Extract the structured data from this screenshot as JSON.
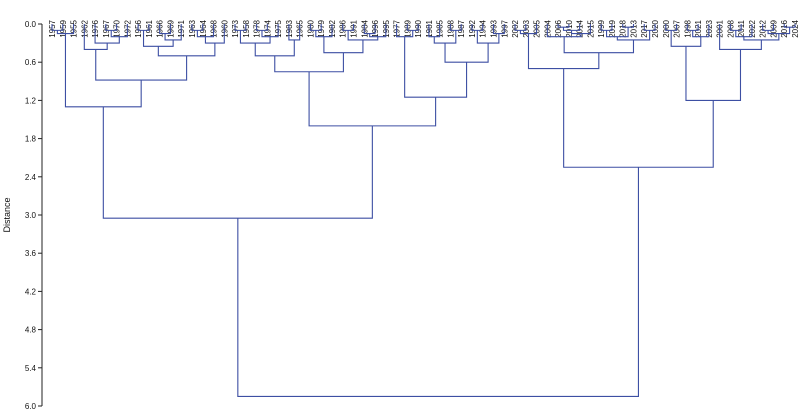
{
  "chart_data": {
    "type": "dendrogram",
    "y_label": "Distance",
    "color": "#3d4fa3",
    "ylim": [
      0,
      6
    ],
    "yticks": [
      {
        "value": 0,
        "label": "0.0"
      },
      0.6,
      1.2,
      1.8,
      2.4,
      {
        "value": 3,
        "label": "3.0"
      },
      3.6,
      4.2,
      4.8,
      5.4,
      {
        "value": 6,
        "label": "6.0"
      }
    ],
    "leaves": [
      "1957",
      "1959",
      "1955",
      "1962",
      "1976",
      "1967",
      "1970",
      "1972",
      "1956",
      "1961",
      "1966",
      "1969",
      "1971",
      "1963",
      "1964",
      "1968",
      "1960",
      "1973",
      "1958",
      "1978",
      "1974",
      "1975",
      "1983",
      "1965",
      "1980",
      "1979",
      "1982",
      "1986",
      "1991",
      "1984",
      "1996",
      "1995",
      "1977",
      "1989",
      "1990",
      "1981",
      "1985",
      "1988",
      "1987",
      "1992",
      "1994",
      "1993",
      "1997",
      "2002",
      "2003",
      "2005",
      "2004",
      "2006",
      "2010",
      "2014",
      "2015",
      "1999",
      "2019",
      "2018",
      "2013",
      "2017",
      "2020",
      "2000",
      "2007",
      "1998",
      "2021",
      "2023",
      "2001",
      "2008",
      "2011",
      "2022",
      "2012",
      "2009",
      "2016",
      "2024"
    ],
    "merges": [
      {
        "pair": [
          0,
          1
        ],
        "height": 0.1
      },
      {
        "pair": [
          70,
          2
        ],
        "height": 0.15
      },
      {
        "pair": [
          5,
          6
        ],
        "height": 0.1
      },
      {
        "pair": [
          72,
          7
        ],
        "height": 0.2
      },
      {
        "pair": [
          4,
          73
        ],
        "height": 0.3
      },
      {
        "pair": [
          3,
          74
        ],
        "height": 0.4
      },
      {
        "pair": [
          8,
          9
        ],
        "height": 0.1
      },
      {
        "pair": [
          10,
          11
        ],
        "height": 0.15
      },
      {
        "pair": [
          77,
          12
        ],
        "height": 0.25
      },
      {
        "pair": [
          76,
          78
        ],
        "height": 0.35
      },
      {
        "pair": [
          13,
          14
        ],
        "height": 0.1
      },
      {
        "pair": [
          80,
          15
        ],
        "height": 0.2
      },
      {
        "pair": [
          81,
          16
        ],
        "height": 0.3
      },
      {
        "pair": [
          79,
          82
        ],
        "height": 0.5
      },
      {
        "pair": [
          75,
          83
        ],
        "height": 0.88
      },
      {
        "pair": [
          71,
          84
        ],
        "height": 1.3
      },
      {
        "pair": [
          17,
          18
        ],
        "height": 0.1
      },
      {
        "pair": [
          19,
          20
        ],
        "height": 0.1
      },
      {
        "pair": [
          87,
          21
        ],
        "height": 0.2
      },
      {
        "pair": [
          86,
          88
        ],
        "height": 0.3
      },
      {
        "pair": [
          22,
          23
        ],
        "height": 0.25
      },
      {
        "pair": [
          89,
          90
        ],
        "height": 0.5
      },
      {
        "pair": [
          24,
          25
        ],
        "height": 0.1
      },
      {
        "pair": [
          92,
          26
        ],
        "height": 0.2
      },
      {
        "pair": [
          27,
          28
        ],
        "height": 0.1
      },
      {
        "pair": [
          29,
          30
        ],
        "height": 0.15
      },
      {
        "pair": [
          95,
          31
        ],
        "height": 0.2
      },
      {
        "pair": [
          94,
          96
        ],
        "height": 0.25
      },
      {
        "pair": [
          93,
          97
        ],
        "height": 0.45
      },
      {
        "pair": [
          91,
          98
        ],
        "height": 0.75
      },
      {
        "pair": [
          33,
          34
        ],
        "height": 0.1
      },
      {
        "pair": [
          32,
          100
        ],
        "height": 0.2
      },
      {
        "pair": [
          35,
          36
        ],
        "height": 0.2
      },
      {
        "pair": [
          37,
          38
        ],
        "height": 0.1
      },
      {
        "pair": [
          102,
          103
        ],
        "height": 0.3
      },
      {
        "pair": [
          39,
          40
        ],
        "height": 0.1
      },
      {
        "pair": [
          41,
          42
        ],
        "height": 0.15
      },
      {
        "pair": [
          105,
          106
        ],
        "height": 0.3
      },
      {
        "pair": [
          104,
          107
        ],
        "height": 0.6
      },
      {
        "pair": [
          101,
          108
        ],
        "height": 1.15
      },
      {
        "pair": [
          99,
          109
        ],
        "height": 1.6
      },
      {
        "pair": [
          85,
          110
        ],
        "height": 3.05
      },
      {
        "pair": [
          43,
          44
        ],
        "height": 0.1
      },
      {
        "pair": [
          112,
          45
        ],
        "height": 0.15
      },
      {
        "pair": [
          47,
          48
        ],
        "height": 0.05
      },
      {
        "pair": [
          114,
          49
        ],
        "height": 0.1
      },
      {
        "pair": [
          115,
          50
        ],
        "height": 0.15
      },
      {
        "pair": [
          46,
          116
        ],
        "height": 0.2
      },
      {
        "pair": [
          51,
          52
        ],
        "height": 0.1
      },
      {
        "pair": [
          53,
          54
        ],
        "height": 0.05
      },
      {
        "pair": [
          118,
          119
        ],
        "height": 0.2
      },
      {
        "pair": [
          55,
          56
        ],
        "height": 0.1
      },
      {
        "pair": [
          120,
          121
        ],
        "height": 0.25
      },
      {
        "pair": [
          117,
          122
        ],
        "height": 0.45
      },
      {
        "pair": [
          113,
          123
        ],
        "height": 0.7
      },
      {
        "pair": [
          57,
          58
        ],
        "height": 0.1
      },
      {
        "pair": [
          59,
          60
        ],
        "height": 0.1
      },
      {
        "pair": [
          126,
          61
        ],
        "height": 0.2
      },
      {
        "pair": [
          125,
          127
        ],
        "height": 0.35
      },
      {
        "pair": [
          63,
          64
        ],
        "height": 0.1
      },
      {
        "pair": [
          129,
          65
        ],
        "height": 0.2
      },
      {
        "pair": [
          66,
          67
        ],
        "height": 0.1
      },
      {
        "pair": [
          68,
          69
        ],
        "height": 0.05
      },
      {
        "pair": [
          131,
          132
        ],
        "height": 0.15
      },
      {
        "pair": [
          130,
          133
        ],
        "height": 0.25
      },
      {
        "pair": [
          62,
          134
        ],
        "height": 0.4
      },
      {
        "pair": [
          128,
          135
        ],
        "height": 1.2
      },
      {
        "pair": [
          124,
          136
        ],
        "height": 2.25
      },
      {
        "pair": [
          111,
          137
        ],
        "height": 5.85
      }
    ]
  }
}
